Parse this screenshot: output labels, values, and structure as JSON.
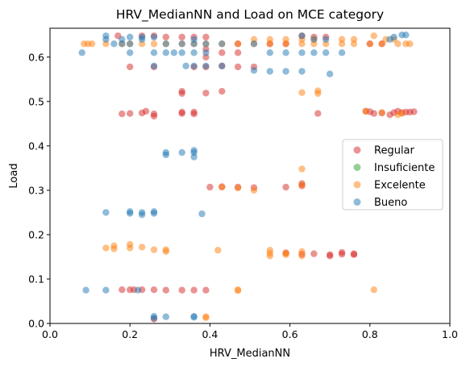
{
  "chart_data": {
    "type": "scatter",
    "title": "HRV_MedianNN and Load on MCE category",
    "xlabel": "HRV_MedianNN",
    "ylabel": "Load",
    "xlim": [
      0.0,
      1.0
    ],
    "ylim": [
      0.0,
      0.665
    ],
    "xticks": [
      "0.0",
      "0.2",
      "0.4",
      "0.6",
      "0.8",
      "1.0"
    ],
    "xtick_values": [
      0.0,
      0.2,
      0.4,
      0.6,
      0.8,
      1.0
    ],
    "yticks": [
      "0.0",
      "0.1",
      "0.2",
      "0.3",
      "0.4",
      "0.5",
      "0.6"
    ],
    "ytick_values": [
      0.0,
      0.1,
      0.2,
      0.3,
      0.4,
      0.5,
      0.6
    ],
    "grid": false,
    "legend_position": "center-right",
    "series": [
      {
        "name": "Regular",
        "color": "#d62728",
        "points": [
          [
            0.18,
            0.076
          ],
          [
            0.2,
            0.076
          ],
          [
            0.21,
            0.076
          ],
          [
            0.23,
            0.076
          ],
          [
            0.26,
            0.076
          ],
          [
            0.29,
            0.075
          ],
          [
            0.33,
            0.075
          ],
          [
            0.36,
            0.075
          ],
          [
            0.39,
            0.075
          ],
          [
            0.26,
            0.01
          ],
          [
            0.18,
            0.472
          ],
          [
            0.2,
            0.473
          ],
          [
            0.23,
            0.474
          ],
          [
            0.24,
            0.478
          ],
          [
            0.26,
            0.472
          ],
          [
            0.26,
            0.467
          ],
          [
            0.33,
            0.476
          ],
          [
            0.33,
            0.473
          ],
          [
            0.36,
            0.476
          ],
          [
            0.36,
            0.472
          ],
          [
            0.67,
            0.473
          ],
          [
            0.79,
            0.478
          ],
          [
            0.8,
            0.477
          ],
          [
            0.81,
            0.473
          ],
          [
            0.83,
            0.474
          ],
          [
            0.85,
            0.47
          ],
          [
            0.86,
            0.475
          ],
          [
            0.87,
            0.478
          ],
          [
            0.88,
            0.475
          ],
          [
            0.89,
            0.476
          ],
          [
            0.9,
            0.476
          ],
          [
            0.91,
            0.477
          ],
          [
            0.33,
            0.523
          ],
          [
            0.33,
            0.518
          ],
          [
            0.39,
            0.519
          ],
          [
            0.43,
            0.523
          ],
          [
            0.2,
            0.578
          ],
          [
            0.26,
            0.578
          ],
          [
            0.36,
            0.578
          ],
          [
            0.39,
            0.578
          ],
          [
            0.43,
            0.58
          ],
          [
            0.47,
            0.578
          ],
          [
            0.51,
            0.578
          ],
          [
            0.39,
            0.6
          ],
          [
            0.39,
            0.618
          ],
          [
            0.43,
            0.61
          ],
          [
            0.47,
            0.61
          ],
          [
            0.17,
            0.648
          ],
          [
            0.23,
            0.648
          ],
          [
            0.26,
            0.648
          ],
          [
            0.29,
            0.645
          ],
          [
            0.33,
            0.645
          ],
          [
            0.36,
            0.645
          ],
          [
            0.39,
            0.645
          ],
          [
            0.47,
            0.63
          ],
          [
            0.55,
            0.63
          ],
          [
            0.59,
            0.63
          ],
          [
            0.63,
            0.648
          ],
          [
            0.66,
            0.645
          ],
          [
            0.69,
            0.645
          ],
          [
            0.8,
            0.63
          ],
          [
            0.83,
            0.63
          ],
          [
            0.4,
            0.307
          ],
          [
            0.43,
            0.308
          ],
          [
            0.47,
            0.307
          ],
          [
            0.51,
            0.306
          ],
          [
            0.59,
            0.307
          ],
          [
            0.63,
            0.31
          ],
          [
            0.63,
            0.315
          ],
          [
            0.59,
            0.159
          ],
          [
            0.63,
            0.156
          ],
          [
            0.66,
            0.157
          ],
          [
            0.7,
            0.155
          ],
          [
            0.7,
            0.152
          ],
          [
            0.73,
            0.16
          ],
          [
            0.73,
            0.156
          ],
          [
            0.76,
            0.157
          ],
          [
            0.76,
            0.155
          ]
        ]
      },
      {
        "name": "Insuficiente",
        "color": "#2ca02c",
        "points": []
      },
      {
        "name": "Excelente",
        "color": "#ff7f0e",
        "points": [
          [
            0.085,
            0.63
          ],
          [
            0.095,
            0.63
          ],
          [
            0.105,
            0.63
          ],
          [
            0.14,
            0.63
          ],
          [
            0.18,
            0.63
          ],
          [
            0.2,
            0.63
          ],
          [
            0.23,
            0.63
          ],
          [
            0.26,
            0.63
          ],
          [
            0.29,
            0.63
          ],
          [
            0.33,
            0.63
          ],
          [
            0.36,
            0.63
          ],
          [
            0.39,
            0.63
          ],
          [
            0.43,
            0.63
          ],
          [
            0.47,
            0.63
          ],
          [
            0.51,
            0.63
          ],
          [
            0.55,
            0.63
          ],
          [
            0.59,
            0.63
          ],
          [
            0.63,
            0.63
          ],
          [
            0.66,
            0.63
          ],
          [
            0.69,
            0.63
          ],
          [
            0.73,
            0.63
          ],
          [
            0.76,
            0.63
          ],
          [
            0.8,
            0.63
          ],
          [
            0.83,
            0.63
          ],
          [
            0.87,
            0.63
          ],
          [
            0.89,
            0.63
          ],
          [
            0.9,
            0.63
          ],
          [
            0.51,
            0.64
          ],
          [
            0.55,
            0.64
          ],
          [
            0.59,
            0.64
          ],
          [
            0.63,
            0.64
          ],
          [
            0.66,
            0.64
          ],
          [
            0.73,
            0.64
          ],
          [
            0.76,
            0.64
          ],
          [
            0.81,
            0.648
          ],
          [
            0.84,
            0.64
          ],
          [
            0.86,
            0.64
          ],
          [
            0.63,
            0.52
          ],
          [
            0.67,
            0.524
          ],
          [
            0.67,
            0.518
          ],
          [
            0.63,
            0.348
          ],
          [
            0.63,
            0.312
          ],
          [
            0.43,
            0.307
          ],
          [
            0.47,
            0.305
          ],
          [
            0.51,
            0.3
          ],
          [
            0.79,
            0.478
          ],
          [
            0.83,
            0.475
          ],
          [
            0.87,
            0.47
          ],
          [
            0.88,
            0.473
          ],
          [
            0.14,
            0.17
          ],
          [
            0.16,
            0.175
          ],
          [
            0.16,
            0.168
          ],
          [
            0.2,
            0.178
          ],
          [
            0.2,
            0.17
          ],
          [
            0.23,
            0.172
          ],
          [
            0.26,
            0.166
          ],
          [
            0.29,
            0.166
          ],
          [
            0.29,
            0.162
          ],
          [
            0.42,
            0.165
          ],
          [
            0.55,
            0.165
          ],
          [
            0.55,
            0.158
          ],
          [
            0.55,
            0.152
          ],
          [
            0.59,
            0.158
          ],
          [
            0.59,
            0.155
          ],
          [
            0.63,
            0.162
          ],
          [
            0.63,
            0.152
          ],
          [
            0.47,
            0.076
          ],
          [
            0.47,
            0.074
          ],
          [
            0.81,
            0.076
          ],
          [
            0.39,
            0.015
          ],
          [
            0.39,
            0.013
          ]
        ]
      },
      {
        "name": "Bueno",
        "color": "#1f77b4",
        "points": [
          [
            0.08,
            0.61
          ],
          [
            0.14,
            0.648
          ],
          [
            0.14,
            0.64
          ],
          [
            0.16,
            0.63
          ],
          [
            0.18,
            0.63
          ],
          [
            0.18,
            0.64
          ],
          [
            0.2,
            0.63
          ],
          [
            0.2,
            0.645
          ],
          [
            0.23,
            0.645
          ],
          [
            0.23,
            0.64
          ],
          [
            0.26,
            0.645
          ],
          [
            0.29,
            0.63
          ],
          [
            0.33,
            0.63
          ],
          [
            0.36,
            0.63
          ],
          [
            0.36,
            0.64
          ],
          [
            0.39,
            0.63
          ],
          [
            0.43,
            0.63
          ],
          [
            0.51,
            0.63
          ],
          [
            0.55,
            0.61
          ],
          [
            0.59,
            0.61
          ],
          [
            0.63,
            0.61
          ],
          [
            0.66,
            0.61
          ],
          [
            0.69,
            0.61
          ],
          [
            0.73,
            0.61
          ],
          [
            0.63,
            0.648
          ],
          [
            0.66,
            0.64
          ],
          [
            0.69,
            0.64
          ],
          [
            0.85,
            0.64
          ],
          [
            0.86,
            0.645
          ],
          [
            0.88,
            0.65
          ],
          [
            0.89,
            0.65
          ],
          [
            0.2,
            0.61
          ],
          [
            0.26,
            0.61
          ],
          [
            0.29,
            0.61
          ],
          [
            0.31,
            0.61
          ],
          [
            0.33,
            0.61
          ],
          [
            0.36,
            0.61
          ],
          [
            0.39,
            0.61
          ],
          [
            0.26,
            0.58
          ],
          [
            0.34,
            0.58
          ],
          [
            0.36,
            0.58
          ],
          [
            0.39,
            0.58
          ],
          [
            0.43,
            0.58
          ],
          [
            0.51,
            0.57
          ],
          [
            0.55,
            0.568
          ],
          [
            0.59,
            0.568
          ],
          [
            0.63,
            0.568
          ],
          [
            0.7,
            0.562
          ],
          [
            0.29,
            0.385
          ],
          [
            0.29,
            0.38
          ],
          [
            0.33,
            0.385
          ],
          [
            0.36,
            0.39
          ],
          [
            0.36,
            0.385
          ],
          [
            0.36,
            0.375
          ],
          [
            0.14,
            0.25
          ],
          [
            0.2,
            0.252
          ],
          [
            0.2,
            0.248
          ],
          [
            0.23,
            0.25
          ],
          [
            0.23,
            0.245
          ],
          [
            0.26,
            0.252
          ],
          [
            0.26,
            0.248
          ],
          [
            0.38,
            0.247
          ],
          [
            0.09,
            0.075
          ],
          [
            0.14,
            0.075
          ],
          [
            0.22,
            0.075
          ],
          [
            0.26,
            0.016
          ],
          [
            0.26,
            0.012
          ],
          [
            0.29,
            0.015
          ],
          [
            0.36,
            0.016
          ],
          [
            0.36,
            0.014
          ]
        ]
      }
    ],
    "legend": [
      "Regular",
      "Insuficiente",
      "Excelente",
      "Bueno"
    ]
  }
}
